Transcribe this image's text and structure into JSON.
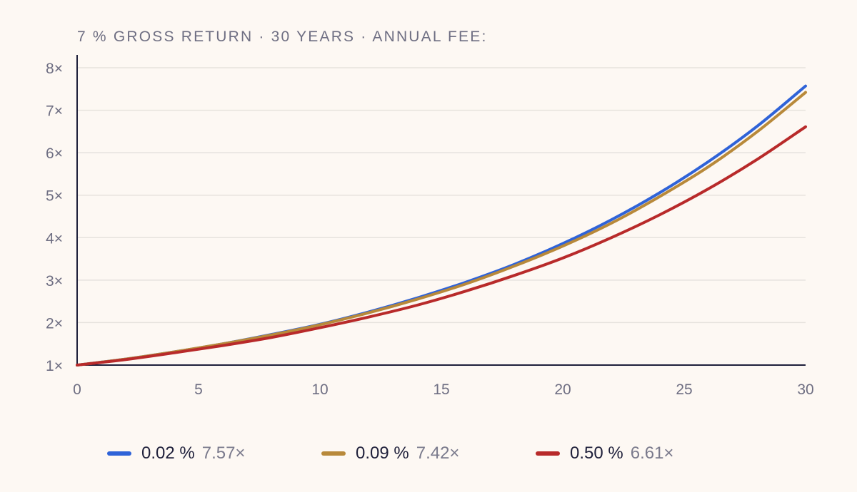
{
  "title": "7 % GROSS RETURN · 30 YEARS · ANNUAL FEE:",
  "colors": {
    "background": "#fdf8f3",
    "axis": "#1e1f3a",
    "grid": "#e6e2dd",
    "tick_text": "#6e6e82"
  },
  "chart_data": {
    "type": "line",
    "title": "7 % GROSS RETURN · 30 YEARS · ANNUAL FEE:",
    "xlabel": "",
    "ylabel": "",
    "xlim": [
      0,
      30
    ],
    "ylim": [
      1,
      8
    ],
    "x_ticks": [
      0,
      5,
      10,
      15,
      20,
      25,
      30
    ],
    "x_tick_labels": [
      "0",
      "5",
      "10",
      "15",
      "20",
      "25",
      "30"
    ],
    "y_ticks": [
      1,
      2,
      3,
      4,
      5,
      6,
      7,
      8
    ],
    "y_tick_labels": [
      "1×",
      "2×",
      "3×",
      "4×",
      "5×",
      "6×",
      "7×",
      "8×"
    ],
    "grid": "horizontal",
    "legend_position": "bottom",
    "x": [
      0,
      2,
      4,
      6,
      8,
      10,
      12,
      14,
      16,
      18,
      20,
      22,
      24,
      26,
      28,
      30
    ],
    "series": [
      {
        "name": "0.02 %",
        "final_label": "7.57×",
        "color": "#2f63d8",
        "values": [
          1.0,
          1.14,
          1.31,
          1.5,
          1.72,
          1.96,
          2.25,
          2.58,
          2.95,
          3.37,
          3.86,
          4.42,
          5.06,
          5.79,
          6.62,
          7.57
        ]
      },
      {
        "name": "0.09 %",
        "final_label": "7.42×",
        "color": "#b8893a",
        "values": [
          1.0,
          1.14,
          1.31,
          1.5,
          1.71,
          1.95,
          2.23,
          2.55,
          2.91,
          3.33,
          3.8,
          4.34,
          4.97,
          5.67,
          6.49,
          7.42
        ]
      },
      {
        "name": "0.50 %",
        "final_label": "6.61×",
        "color": "#b82a2a",
        "values": [
          1.0,
          1.13,
          1.29,
          1.46,
          1.65,
          1.88,
          2.13,
          2.41,
          2.74,
          3.11,
          3.52,
          4.0,
          4.54,
          5.15,
          5.84,
          6.61
        ]
      }
    ]
  }
}
